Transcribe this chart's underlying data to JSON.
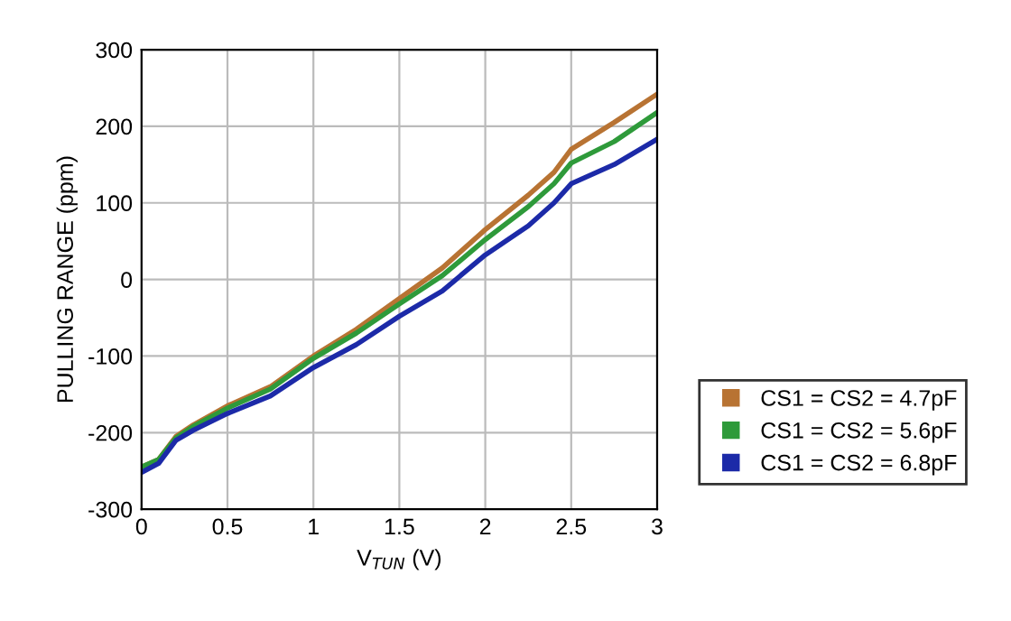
{
  "chart_data": {
    "type": "line",
    "xlabel": "V$_{TUN}$ (V)",
    "ylabel": "PULLING RANGE (ppm)",
    "x": [
      0,
      0.1,
      0.2,
      0.3,
      0.5,
      0.75,
      1,
      1.25,
      1.5,
      1.75,
      2,
      2.25,
      2.4,
      2.5,
      2.75,
      3
    ],
    "series": [
      {
        "name": "CS1 = CS2 = 4.7pF",
        "color": "#b87333",
        "values": [
          -245,
          -235,
          -205,
          -190,
          -165,
          -140,
          -100,
          -65,
          -25,
          15,
          65,
          110,
          140,
          170,
          205,
          242
        ]
      },
      {
        "name": "CS1 = CS2 = 5.6pF",
        "color": "#2e9a3a",
        "values": [
          -245,
          -235,
          -207,
          -192,
          -168,
          -143,
          -103,
          -70,
          -32,
          5,
          52,
          95,
          125,
          152,
          180,
          218
        ]
      },
      {
        "name": "CS1 = CS2 = 6.8pF",
        "color": "#1c2aa8",
        "values": [
          -252,
          -240,
          -210,
          -197,
          -175,
          -152,
          -115,
          -85,
          -48,
          -15,
          32,
          70,
          100,
          125,
          150,
          183
        ]
      }
    ],
    "xlim": [
      0,
      3
    ],
    "xticks": [
      0,
      0.5,
      1,
      1.5,
      2,
      2.5,
      3
    ],
    "ylim": [
      -300,
      300
    ],
    "yticks": [
      -300,
      -200,
      -100,
      0,
      100,
      200,
      300
    ],
    "grid": true,
    "legend": "right",
    "line_style": "solid"
  }
}
